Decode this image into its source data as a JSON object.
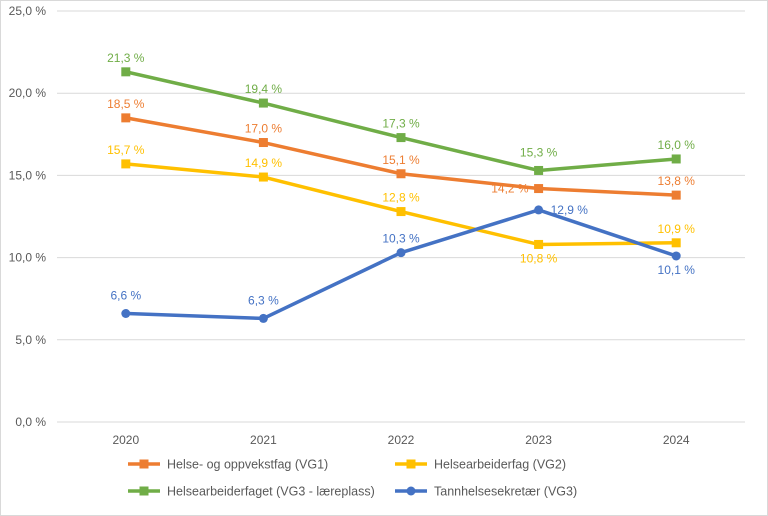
{
  "chart_data": {
    "type": "line",
    "title": "",
    "xlabel": "",
    "ylabel": "",
    "categories": [
      "2020",
      "2021",
      "2022",
      "2023",
      "2024"
    ],
    "ylim": [
      0,
      25
    ],
    "yticks": [
      "0,0 %",
      "5,0 %",
      "10,0 %",
      "15,0 %",
      "20,0 %",
      "25,0 %"
    ],
    "grid": true,
    "legend_position": "bottom",
    "series": [
      {
        "name": "Helse- og oppvekstfag (VG1)",
        "color": "#ED7D31",
        "marker": "square",
        "values": [
          18.5,
          17.0,
          15.1,
          14.2,
          13.8
        ],
        "labels": [
          "18,5 %",
          "17,0 %",
          "15,1 %",
          "14,2 %",
          "13,8 %"
        ]
      },
      {
        "name": "Helsearbeiderfag (VG2)",
        "color": "#FFC000",
        "marker": "square",
        "values": [
          15.7,
          14.9,
          12.8,
          10.8,
          10.9
        ],
        "labels": [
          "15,7 %",
          "14,9 %",
          "12,8 %",
          "10,8 %",
          "10,9 %"
        ]
      },
      {
        "name": "Helsearbeiderfaget (VG3 - læreplass)",
        "color": "#70AD47",
        "marker": "square",
        "values": [
          21.3,
          19.4,
          17.3,
          15.3,
          16.0
        ],
        "labels": [
          "21,3 %",
          "19,4 %",
          "17,3 %",
          "15,3 %",
          "16,0 %"
        ]
      },
      {
        "name": "Tannhelsesekretær (VG3)",
        "color": "#4472C4",
        "marker": "circle",
        "values": [
          6.6,
          6.3,
          10.3,
          12.9,
          10.1
        ],
        "labels": [
          "6,6 %",
          "6,3 %",
          "10,3 %",
          "12,9 %",
          "10,1 %"
        ]
      }
    ]
  }
}
